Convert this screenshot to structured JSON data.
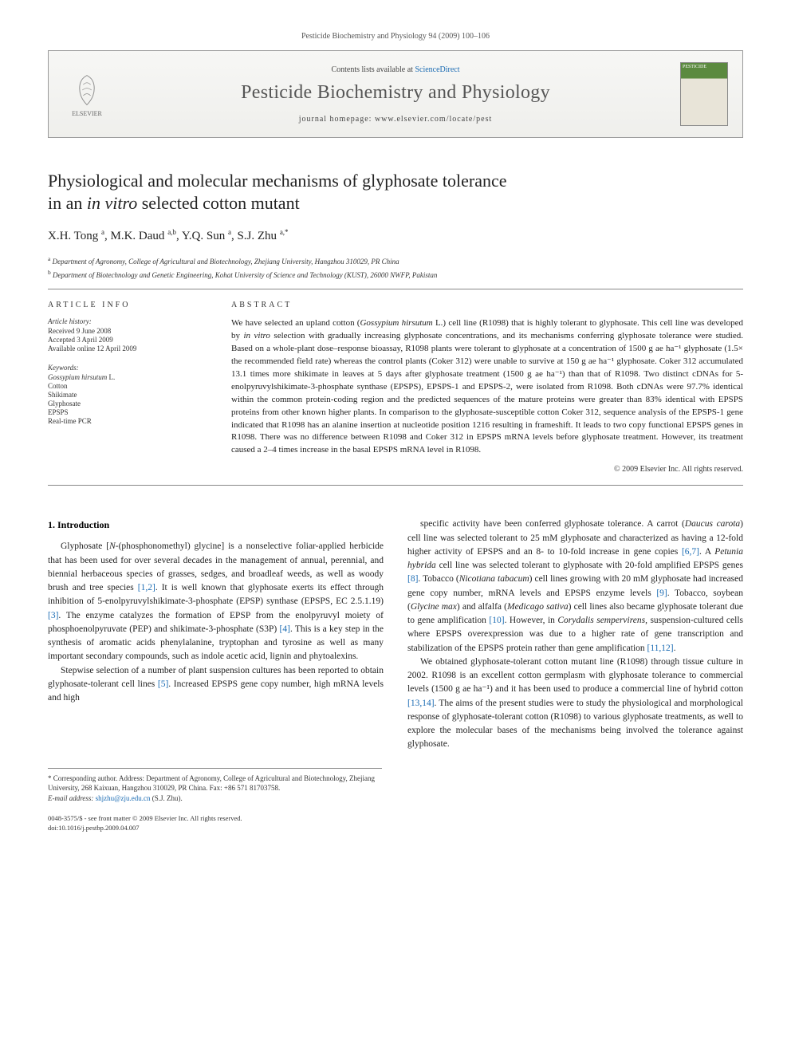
{
  "header": {
    "citation": "Pesticide Biochemistry and Physiology 94 (2009) 100–106",
    "contents_prefix": "Contents lists available at ",
    "contents_link": "ScienceDirect",
    "journal_name": "Pesticide Biochemistry and Physiology",
    "homepage_prefix": "journal homepage: ",
    "homepage_url": "www.elsevier.com/locate/pest",
    "publisher_name": "ELSEVIER",
    "cover_label": "PESTICIDE"
  },
  "title": {
    "line1": "Physiological and molecular mechanisms of glyphosate tolerance",
    "line2_pre": "in an ",
    "line2_italic": "in vitro",
    "line2_post": " selected cotton mutant"
  },
  "authors_html": "X.H. Tong <sup>a</sup>, M.K. Daud <sup>a,b</sup>, Y.Q. Sun <sup>a</sup>, S.J. Zhu <sup>a,*</sup>",
  "affiliations": [
    {
      "sup": "a",
      "text": "Department of Agronomy, College of Agricultural and Biotechnology, Zhejiang University, Hangzhou 310029, PR China"
    },
    {
      "sup": "b",
      "text": "Department of Biotechnology and Genetic Engineering, Kohat University of Science and Technology (KUST), 26000 NWFP, Pakistan"
    }
  ],
  "info": {
    "heading": "ARTICLE INFO",
    "history_label": "Article history:",
    "history": [
      "Received 9 June 2008",
      "Accepted 3 April 2009",
      "Available online 12 April 2009"
    ],
    "keywords_label": "Keywords:",
    "keywords": [
      {
        "text": "Gossypium hirsutum",
        "italic": true,
        "suffix": " L."
      },
      {
        "text": "Cotton"
      },
      {
        "text": "Shikimate"
      },
      {
        "text": "Glyphosate"
      },
      {
        "text": "EPSPS"
      },
      {
        "text": "Real-time PCR"
      }
    ]
  },
  "abstract": {
    "heading": "ABSTRACT",
    "text_parts": [
      {
        "t": "We have selected an upland cotton ("
      },
      {
        "t": "Gossypium hirsutum",
        "i": true
      },
      {
        "t": " L.) cell line (R1098) that is highly tolerant to glyphosate. This cell line was developed by "
      },
      {
        "t": "in vitro",
        "i": true
      },
      {
        "t": " selection with gradually increasing glyphosate concentrations, and its mechanisms conferring glyphosate tolerance were studied. Based on a whole-plant dose–response bioassay, R1098 plants were tolerant to glyphosate at a concentration of 1500 g ae ha⁻¹ glyphosate (1.5× the recommended field rate) whereas the control plants (Coker 312) were unable to survive at 150 g ae ha⁻¹ glyphosate. Coker 312 accumulated 13.1 times more shikimate in leaves at 5 days after glyphosate treatment (1500 g ae ha⁻¹) than that of R1098. Two distinct cDNAs for 5-enolpyruvylshikimate-3-phosphate synthase (EPSPS), EPSPS-1 and EPSPS-2, were isolated from R1098. Both cDNAs were 97.7% identical within the common protein-coding region and the predicted sequences of the mature proteins were greater than 83% identical with EPSPS proteins from other known higher plants. In comparison to the glyphosate-susceptible cotton Coker 312, sequence analysis of the EPSPS-1 gene indicated that R1098 has an alanine insertion at nucleotide position 1216 resulting in frameshift. It leads to two copy functional EPSPS genes in R1098. There was no difference between R1098 and Coker 312 in EPSPS mRNA levels before glyphosate treatment. However, its treatment caused a 2–4 times increase in the basal EPSPS mRNA level in R1098."
      }
    ],
    "copyright": "© 2009 Elsevier Inc. All rights reserved."
  },
  "body": {
    "section_heading": "1. Introduction",
    "col1_paras": [
      [
        {
          "t": "Glyphosate ["
        },
        {
          "t": "N",
          "i": true
        },
        {
          "t": "-(phosphonomethyl) glycine] is a nonselective foliar-applied herbicide that has been used for over several decades in the management of annual, perennial, and biennial herbaceous species of grasses, sedges, and broadleaf weeds, as well as woody brush and tree species "
        },
        {
          "t": "[1,2]",
          "r": true
        },
        {
          "t": ". It is well known that glyphosate exerts its effect through inhibition of 5-enolpyruvylshikimate-3-phosphate (EPSP) synthase (EPSPS, EC 2.5.1.19) "
        },
        {
          "t": "[3]",
          "r": true
        },
        {
          "t": ". The enzyme catalyzes the formation of EPSP from the enolpyruvyl moiety of phosphoenolpyruvate (PEP) and shikimate-3-phosphate (S3P) "
        },
        {
          "t": "[4]",
          "r": true
        },
        {
          "t": ". This is a key step in the synthesis of aromatic acids phenylalanine, tryptophan and tyrosine as well as many important secondary compounds, such as indole acetic acid, lignin and phytoalexins."
        }
      ],
      [
        {
          "t": "Stepwise selection of a number of plant suspension cultures has been reported to obtain glyphosate-tolerant cell lines "
        },
        {
          "t": "[5]",
          "r": true
        },
        {
          "t": ". Increased EPSPS gene copy number, high mRNA levels and high"
        }
      ]
    ],
    "col2_paras": [
      [
        {
          "t": "specific activity have been conferred glyphosate tolerance. A carrot ("
        },
        {
          "t": "Daucus carota",
          "i": true
        },
        {
          "t": ") cell line was selected tolerant to 25 mM glyphosate and characterized as having a 12-fold higher activity of EPSPS and an 8- to 10-fold increase in gene copies "
        },
        {
          "t": "[6,7]",
          "r": true
        },
        {
          "t": ". A "
        },
        {
          "t": "Petunia hybrida",
          "i": true
        },
        {
          "t": " cell line was selected tolerant to glyphosate with 20-fold amplified EPSPS genes "
        },
        {
          "t": "[8]",
          "r": true
        },
        {
          "t": ". Tobacco ("
        },
        {
          "t": "Nicotiana tabacum",
          "i": true
        },
        {
          "t": ") cell lines growing with 20 mM glyphosate had increased gene copy number, mRNA levels and EPSPS enzyme levels "
        },
        {
          "t": "[9]",
          "r": true
        },
        {
          "t": ". Tobacco, soybean ("
        },
        {
          "t": "Glycine max",
          "i": true
        },
        {
          "t": ") and alfalfa ("
        },
        {
          "t": "Medicago sativa",
          "i": true
        },
        {
          "t": ") cell lines also became glyphosate tolerant due to gene amplification "
        },
        {
          "t": "[10]",
          "r": true
        },
        {
          "t": ". However, in "
        },
        {
          "t": "Corydalis sempervirens",
          "i": true
        },
        {
          "t": ", suspension-cultured cells where EPSPS overexpression was due to a higher rate of gene transcription and stabilization of the EPSPS protein rather than gene amplification "
        },
        {
          "t": "[11,12]",
          "r": true
        },
        {
          "t": "."
        }
      ],
      [
        {
          "t": "We obtained glyphosate-tolerant cotton mutant line (R1098) through tissue culture in 2002. R1098 is an excellent cotton germplasm with glyphosate tolerance to commercial levels (1500 g ae ha⁻¹) and it has been used to produce a commercial line of hybrid cotton "
        },
        {
          "t": "[13,14]",
          "r": true
        },
        {
          "t": ". The aims of the present studies were to study the physiological and morphological response of glyphosate-tolerant cotton (R1098) to various glyphosate treatments, as well to explore the molecular bases of the mechanisms being involved the tolerance against glyphosate."
        }
      ]
    ]
  },
  "footer": {
    "corresponding": "* Corresponding author. Address: Department of Agronomy, College of Agricultural and Biotechnology, Zhejiang University, 268 Kaixuan, Hangzhou 310029, PR China. Fax: +86 571 81703758.",
    "email_label": "E-mail address:",
    "email": "shjzhu@zju.edu.cn",
    "email_author": "(S.J. Zhu).",
    "issn_line": "0048-3575/$ - see front matter © 2009 Elsevier Inc. All rights reserved.",
    "doi_line": "doi:10.1016/j.pestbp.2009.04.007"
  }
}
